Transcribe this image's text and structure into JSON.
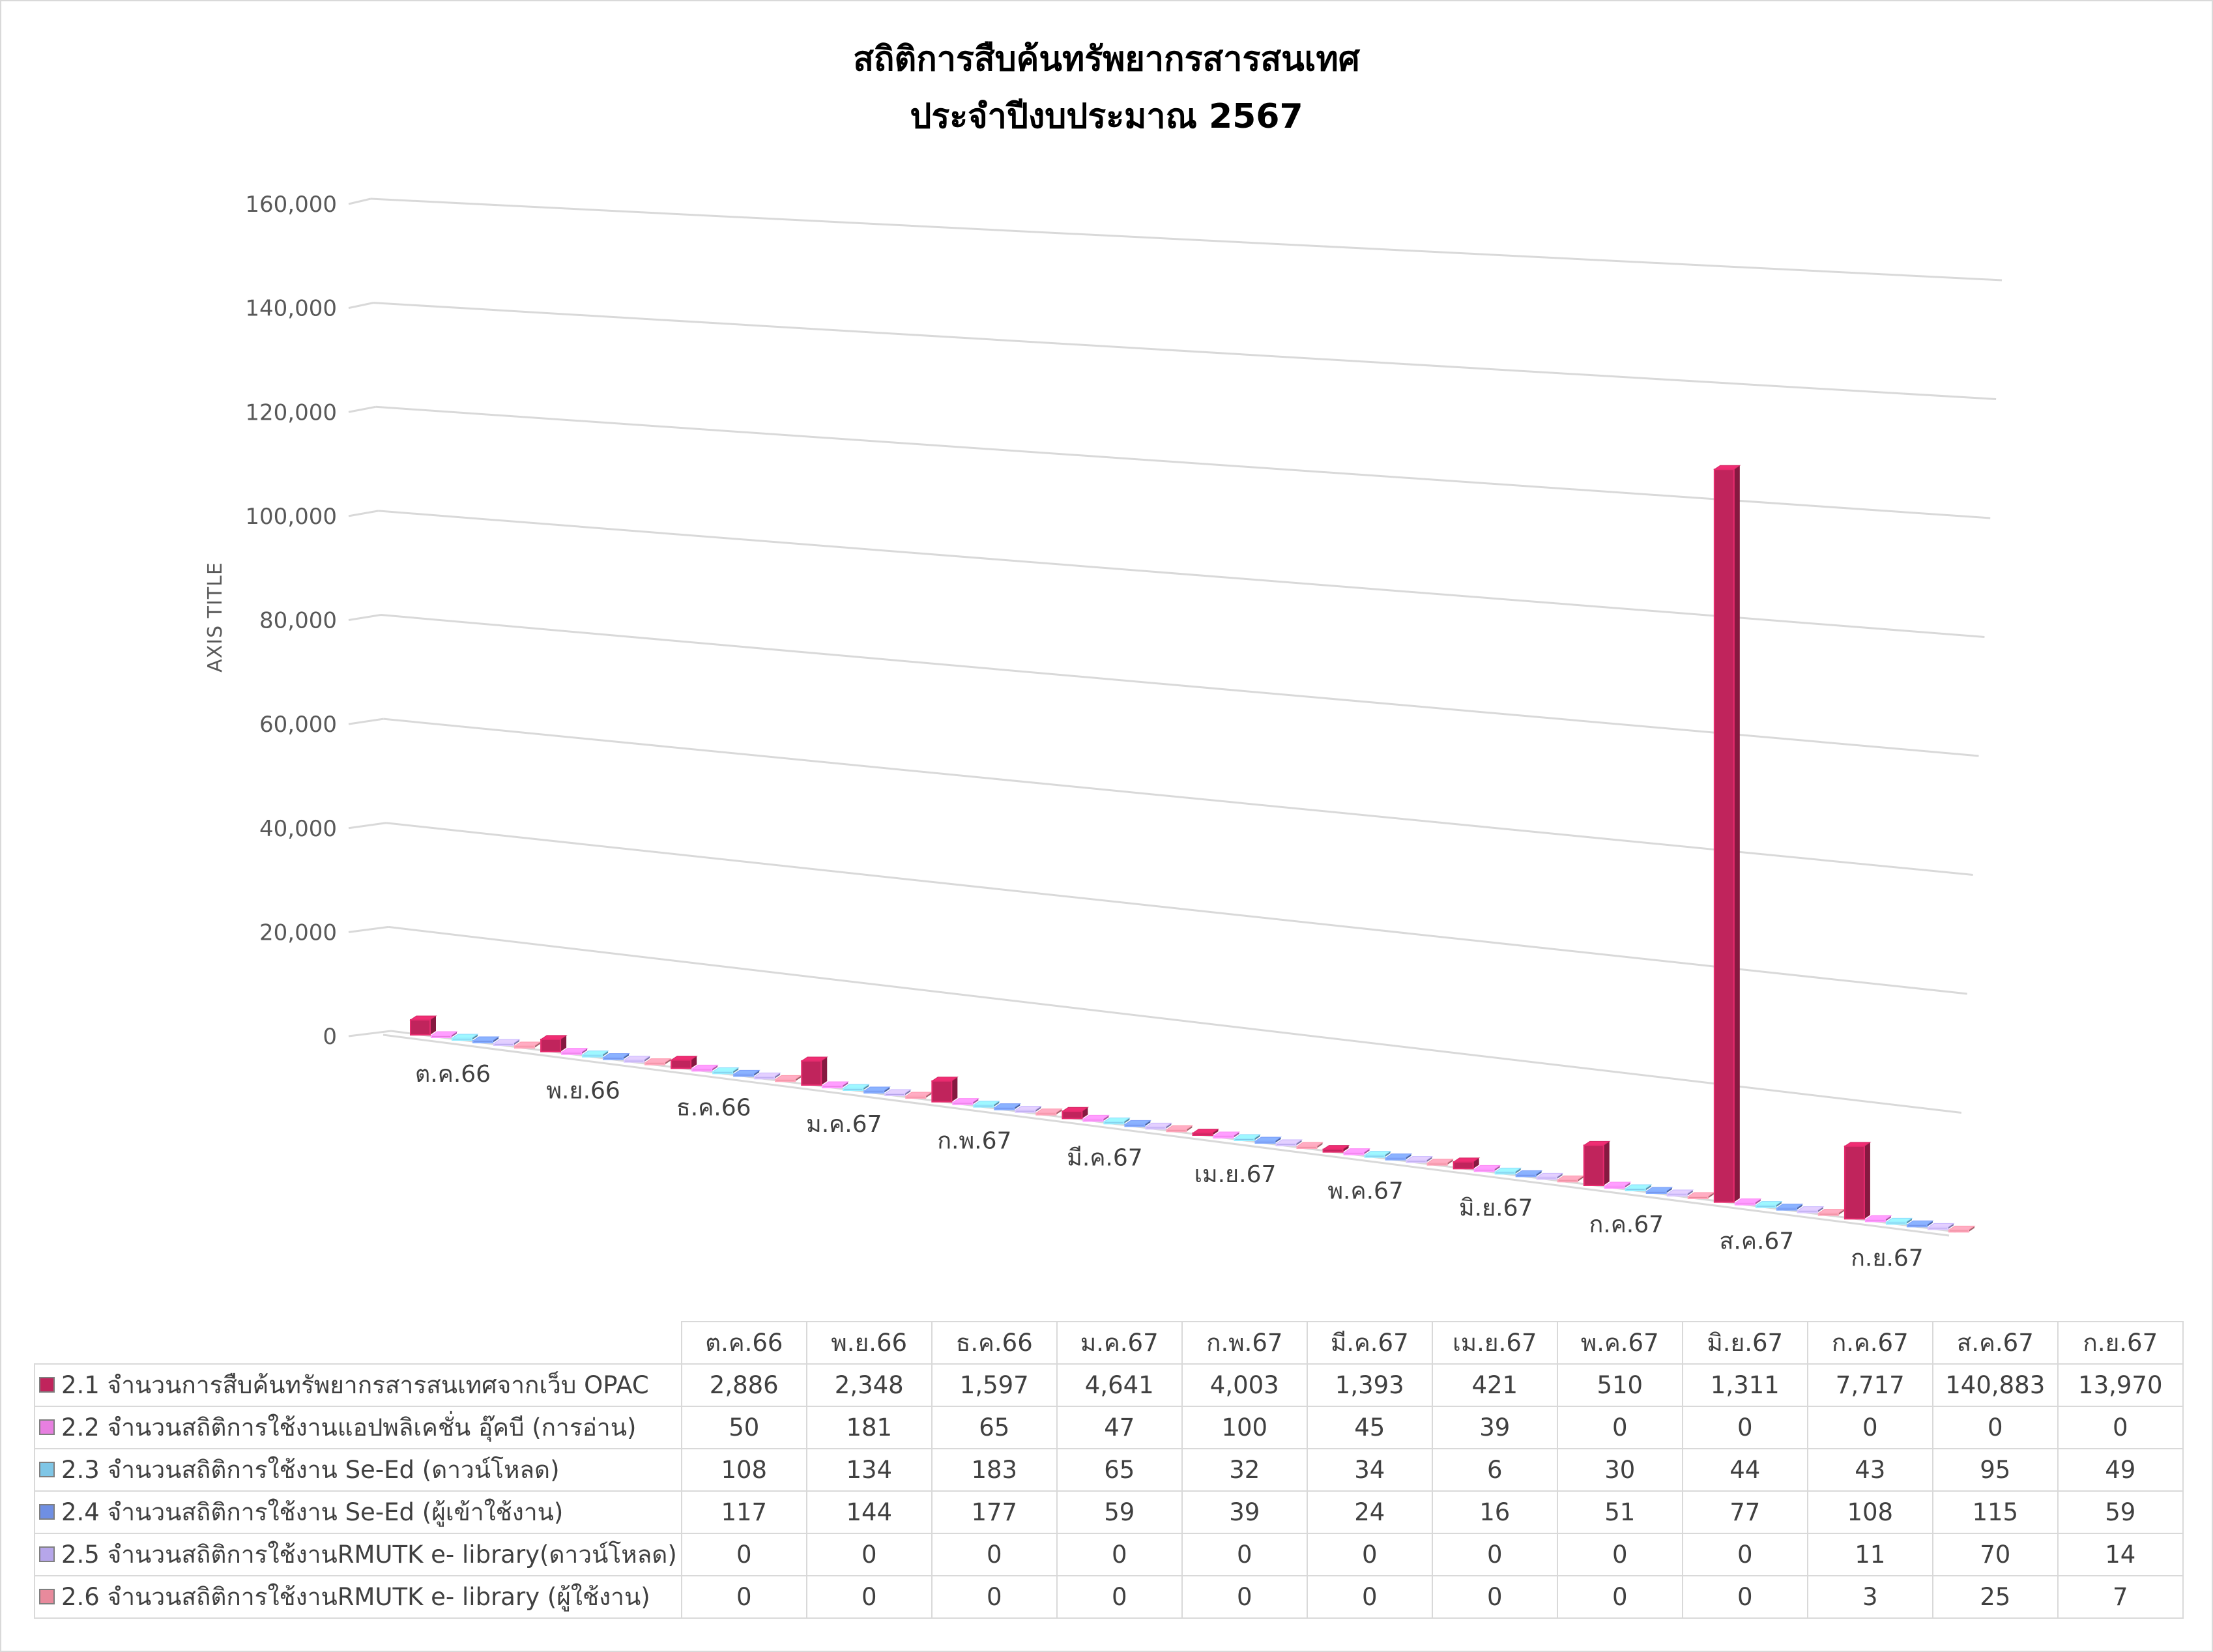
{
  "chart_data": {
    "type": "bar",
    "title": [
      "สถิติการสืบค้นทรัพยากรสารสนเทศ",
      "ประจำปีงบประมาณ 2567"
    ],
    "ylabel": "AXIS TITLE",
    "ylim": [
      0,
      160000
    ],
    "yticks": [
      0,
      20000,
      40000,
      60000,
      80000,
      100000,
      120000,
      140000,
      160000
    ],
    "ytick_labels": [
      "0",
      "20,000",
      "40,000",
      "60,000",
      "80,000",
      "100,000",
      "120,000",
      "140,000",
      "160,000"
    ],
    "grid": true,
    "legend": "data-table-below",
    "categories": [
      "ต.ค.66",
      "พ.ย.66",
      "ธ.ค.66",
      "ม.ค.67",
      "ก.พ.67",
      "มี.ค.67",
      "เม.ย.67",
      "พ.ค.67",
      "มิ.ย.67",
      "ก.ค.67",
      "ส.ค.67",
      "ก.ย.67"
    ],
    "series": [
      {
        "name": "2.1 จำนวนการสืบค้นทรัพยากรสารสนเทศจากเว็บ OPAC",
        "color": "#c0245c",
        "values": [
          2886,
          2348,
          1597,
          4641,
          4003,
          1393,
          421,
          510,
          1311,
          7717,
          140883,
          13970
        ],
        "labels": [
          "2,886",
          "2,348",
          "1,597",
          "4,641",
          "4,003",
          "1,393",
          "421",
          "510",
          "1,311",
          "7,717",
          "140,883",
          "13,970"
        ]
      },
      {
        "name": "2.2 จำนวนสถิติการใช้งานแอปพลิเคชั่น อุ๊คบี (การอ่าน)",
        "color": "#e77fe0",
        "values": [
          50,
          181,
          65,
          47,
          100,
          45,
          39,
          0,
          0,
          0,
          0,
          0
        ],
        "labels": [
          "50",
          "181",
          "65",
          "47",
          "100",
          "45",
          "39",
          "0",
          "0",
          "0",
          "0",
          "0"
        ]
      },
      {
        "name": "2.3 จำนวนสถิติการใช้งาน Se-Ed (ดาวน์โหลด)",
        "color": "#7fc6e6",
        "values": [
          108,
          134,
          183,
          65,
          32,
          34,
          6,
          30,
          44,
          43,
          95,
          49
        ],
        "labels": [
          "108",
          "134",
          "183",
          "65",
          "32",
          "34",
          "6",
          "30",
          "44",
          "43",
          "95",
          "49"
        ]
      },
      {
        "name": "2.4 จำนวนสถิติการใช้งาน Se-Ed (ผู้เข้าใช้งาน)",
        "color": "#6f8fe3",
        "values": [
          117,
          144,
          177,
          59,
          39,
          24,
          16,
          51,
          77,
          108,
          115,
          59
        ],
        "labels": [
          "117",
          "144",
          "177",
          "59",
          "39",
          "24",
          "16",
          "51",
          "77",
          "108",
          "115",
          "59"
        ]
      },
      {
        "name": "2.5 จำนวนสถิติการใช้งานRMUTK e- library(ดาวน์โหลด)",
        "color": "#b6a6ea",
        "values": [
          0,
          0,
          0,
          0,
          0,
          0,
          0,
          0,
          0,
          11,
          70,
          14
        ],
        "labels": [
          "0",
          "0",
          "0",
          "0",
          "0",
          "0",
          "0",
          "0",
          "0",
          "11",
          "70",
          "14"
        ]
      },
      {
        "name": "2.6 จำนวนสถิติการใช้งานRMUTK e- library (ผู้ใช้งาน)",
        "color": "#e88a9c",
        "values": [
          0,
          0,
          0,
          0,
          0,
          0,
          0,
          0,
          0,
          3,
          25,
          7
        ],
        "labels": [
          "0",
          "0",
          "0",
          "0",
          "0",
          "0",
          "0",
          "0",
          "0",
          "3",
          "25",
          "7"
        ]
      }
    ]
  }
}
